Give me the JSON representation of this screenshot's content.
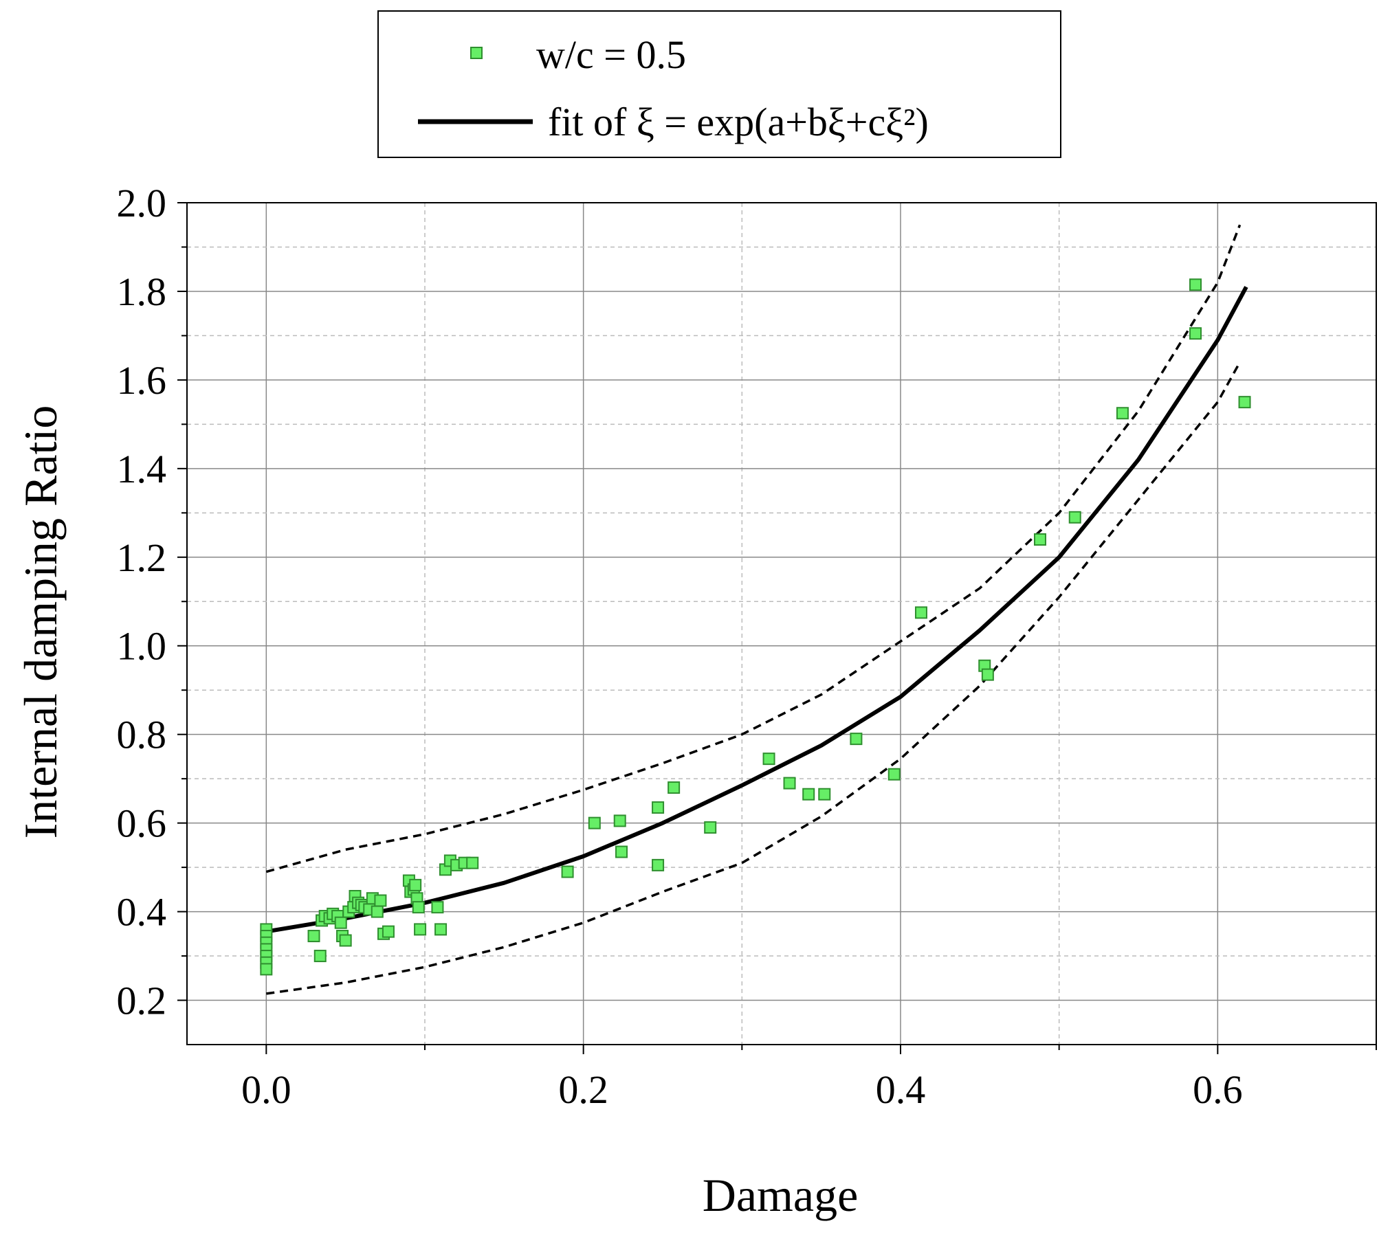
{
  "chart_data": {
    "type": "scatter",
    "title": "",
    "xlabel": "Damage",
    "ylabel": "Internal damping Ratio",
    "xlim": [
      -0.05,
      0.7
    ],
    "ylim": [
      0.1,
      2.0
    ],
    "xticks": [
      0.0,
      0.2,
      0.4,
      0.6
    ],
    "xtick_labels": [
      "0.0",
      "0.2",
      "0.4",
      "0.6"
    ],
    "x_minor_ticks": [
      0.1,
      0.3,
      0.5,
      0.7
    ],
    "yticks": [
      0.2,
      0.4,
      0.6,
      0.8,
      1.0,
      1.2,
      1.4,
      1.6,
      1.8,
      2.0
    ],
    "ytick_labels": [
      "0.2",
      "0.4",
      "0.6",
      "0.8",
      "1.0",
      "1.2",
      "1.4",
      "1.6",
      "1.8",
      "2.0"
    ],
    "y_minor_ticks": [
      0.3,
      0.5,
      0.7,
      0.9,
      1.1,
      1.3,
      1.5,
      1.7,
      1.9
    ],
    "grid": true,
    "legend_position": "top-center, outside plot",
    "legend": [
      {
        "label": "w/c = 0.5",
        "kind": "marker"
      },
      {
        "label": "fit of ξ = exp(a+bξ+cξ²)",
        "kind": "line"
      }
    ],
    "colors": {
      "marker_fill": "#66ee66",
      "marker_edge": "#2f8f2f",
      "fit_line": "#000000",
      "band_line": "#000000",
      "grid_major": "#888888",
      "grid_minor": "#bbbbbb"
    },
    "series": [
      {
        "name": "w/c = 0.5",
        "type": "scatter",
        "points": [
          [
            0.0,
            0.36
          ],
          [
            0.0,
            0.345
          ],
          [
            0.0,
            0.33
          ],
          [
            0.0,
            0.315
          ],
          [
            0.0,
            0.3
          ],
          [
            0.0,
            0.285
          ],
          [
            0.0,
            0.27
          ],
          [
            0.03,
            0.345
          ],
          [
            0.034,
            0.3
          ],
          [
            0.035,
            0.38
          ],
          [
            0.037,
            0.39
          ],
          [
            0.04,
            0.385
          ],
          [
            0.042,
            0.395
          ],
          [
            0.045,
            0.39
          ],
          [
            0.047,
            0.375
          ],
          [
            0.048,
            0.345
          ],
          [
            0.05,
            0.335
          ],
          [
            0.052,
            0.4
          ],
          [
            0.055,
            0.41
          ],
          [
            0.056,
            0.435
          ],
          [
            0.058,
            0.42
          ],
          [
            0.06,
            0.415
          ],
          [
            0.062,
            0.41
          ],
          [
            0.065,
            0.405
          ],
          [
            0.067,
            0.43
          ],
          [
            0.07,
            0.4
          ],
          [
            0.072,
            0.425
          ],
          [
            0.074,
            0.35
          ],
          [
            0.077,
            0.355
          ],
          [
            0.09,
            0.47
          ],
          [
            0.091,
            0.445
          ],
          [
            0.093,
            0.45
          ],
          [
            0.094,
            0.46
          ],
          [
            0.095,
            0.43
          ],
          [
            0.096,
            0.41
          ],
          [
            0.097,
            0.36
          ],
          [
            0.108,
            0.41
          ],
          [
            0.11,
            0.36
          ],
          [
            0.113,
            0.495
          ],
          [
            0.116,
            0.515
          ],
          [
            0.12,
            0.505
          ],
          [
            0.125,
            0.51
          ],
          [
            0.13,
            0.51
          ],
          [
            0.19,
            0.49
          ],
          [
            0.207,
            0.6
          ],
          [
            0.223,
            0.605
          ],
          [
            0.224,
            0.535
          ],
          [
            0.247,
            0.635
          ],
          [
            0.247,
            0.505
          ],
          [
            0.257,
            0.68
          ],
          [
            0.28,
            0.59
          ],
          [
            0.317,
            0.745
          ],
          [
            0.33,
            0.69
          ],
          [
            0.342,
            0.665
          ],
          [
            0.352,
            0.665
          ],
          [
            0.372,
            0.79
          ],
          [
            0.396,
            0.71
          ],
          [
            0.413,
            1.075
          ],
          [
            0.453,
            0.955
          ],
          [
            0.455,
            0.935
          ],
          [
            0.488,
            1.24
          ],
          [
            0.51,
            1.29
          ],
          [
            0.54,
            1.525
          ],
          [
            0.586,
            1.815
          ],
          [
            0.586,
            1.705
          ],
          [
            0.617,
            1.55
          ]
        ]
      },
      {
        "name": "fit of ξ = exp(a+bξ+cξ²)",
        "type": "line",
        "style": "solid",
        "x": [
          0.0,
          0.05,
          0.1,
          0.15,
          0.2,
          0.25,
          0.3,
          0.35,
          0.4,
          0.45,
          0.5,
          0.55,
          0.6,
          0.618
        ],
        "y": [
          0.355,
          0.385,
          0.42,
          0.465,
          0.525,
          0.6,
          0.685,
          0.775,
          0.885,
          1.035,
          1.2,
          1.42,
          1.69,
          1.81
        ]
      },
      {
        "name": "upper confidence band",
        "type": "line",
        "style": "dashed",
        "x": [
          0.0,
          0.05,
          0.1,
          0.15,
          0.2,
          0.25,
          0.3,
          0.35,
          0.4,
          0.45,
          0.5,
          0.55,
          0.6,
          0.614
        ],
        "y": [
          0.49,
          0.54,
          0.575,
          0.62,
          0.675,
          0.735,
          0.8,
          0.89,
          1.01,
          1.13,
          1.3,
          1.53,
          1.82,
          1.95
        ]
      },
      {
        "name": "lower confidence band",
        "type": "line",
        "style": "dashed",
        "x": [
          0.0,
          0.05,
          0.1,
          0.15,
          0.2,
          0.25,
          0.3,
          0.35,
          0.4,
          0.45,
          0.5,
          0.55,
          0.6,
          0.614
        ],
        "y": [
          0.215,
          0.24,
          0.275,
          0.32,
          0.375,
          0.445,
          0.51,
          0.615,
          0.745,
          0.91,
          1.11,
          1.33,
          1.55,
          1.64
        ]
      }
    ]
  }
}
